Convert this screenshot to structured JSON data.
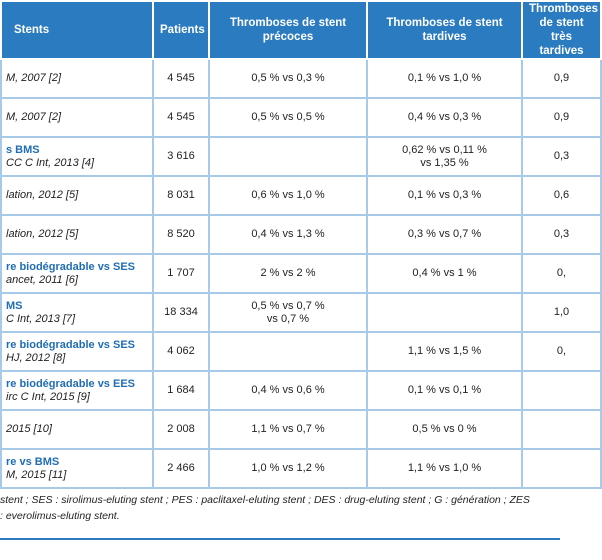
{
  "table": {
    "headers": [
      "Stents",
      "Patients",
      "Thromboses de stent précoces",
      "Thromboses de stent tardives",
      "Thromboses de stent très tardives"
    ],
    "rows": [
      [
        [
          "M, 2007 [2]"
        ],
        [
          "4 545"
        ],
        [
          "0,5 % vs 0,3 %"
        ],
        [
          "0,1 % vs 1,0 %"
        ],
        [
          "0,9"
        ]
      ],
      [
        [
          "M, 2007 [2]"
        ],
        [
          "4 545"
        ],
        [
          "0,5 % vs 0,5 %"
        ],
        [
          "0,4 % vs 0,3 %"
        ],
        [
          "0,9"
        ]
      ],
      [
        [
          "s BMS",
          "CC C Int, 2013 [4]"
        ],
        [
          "3 616"
        ],
        null,
        [
          "0,62 % vs 0,11 %",
          "vs 1,35 %"
        ],
        [
          "0,3"
        ]
      ],
      [
        [
          "lation, 2012 [5]"
        ],
        [
          "8 031"
        ],
        [
          "0,6 % vs 1,0 %"
        ],
        [
          "0,1 % vs 0,3 %"
        ],
        [
          "0,6"
        ]
      ],
      [
        [
          "lation, 2012 [5]"
        ],
        [
          "8 520"
        ],
        [
          "0,4 % vs 1,3 %"
        ],
        [
          "0,3 % vs 0,7 %"
        ],
        [
          "0,3"
        ]
      ],
      [
        [
          "re biodégradable vs SES",
          "ancet, 2011 [6]"
        ],
        [
          "1 707"
        ],
        [
          "2 % vs 2 %"
        ],
        [
          "0,4 % vs 1 %"
        ],
        [
          "0,"
        ]
      ],
      [
        [
          "MS",
          "C Int, 2013 [7]"
        ],
        [
          "18 334"
        ],
        [
          "0,5 % vs 0,7 %",
          "vs 0,7 %"
        ],
        null,
        [
          "1,0"
        ]
      ],
      [
        [
          "re biodégradable vs SES",
          "HJ, 2012 [8]"
        ],
        [
          "4 062"
        ],
        null,
        [
          "1,1 % vs 1,5 %"
        ],
        [
          "0,"
        ]
      ],
      [
        [
          "re biodégradable vs EES",
          "irc C Int, 2015 [9]"
        ],
        [
          "1 684"
        ],
        [
          "0,4 % vs 0,6 %"
        ],
        [
          "0,1 % vs 0,1 %"
        ],
        null
      ],
      [
        [
          "2015 [10]"
        ],
        [
          "2 008"
        ],
        [
          "1,1 % vs 0,7 %"
        ],
        [
          "0,5 % vs 0 %"
        ],
        null
      ],
      [
        [
          "re vs BMS",
          "M, 2015 [11]"
        ],
        [
          "2 466"
        ],
        [
          "1,0 % vs 1,2 %"
        ],
        [
          "1,1 % vs 1,0 %"
        ],
        null
      ]
    ],
    "footnotes": [
      "stent ; SES : sirolimus-eluting stent ; PES : paclitaxel-eluting stent ; DES : drug-eluting stent ; G : génération ; ZES",
      ": everolimus-eluting stent."
    ]
  }
}
